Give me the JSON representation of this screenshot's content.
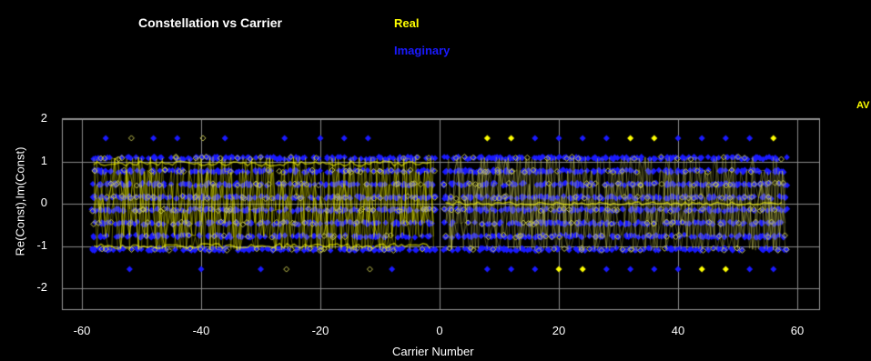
{
  "chart_data": {
    "type": "scatter",
    "title": "Constellation vs Carrier",
    "xlabel": "Carrier Number",
    "ylabel": "Re(Const),Im(Const)",
    "xlim": [
      -63,
      63
    ],
    "ylim": [
      -2.5,
      2.5
    ],
    "x_ticks": [
      -60,
      -40,
      -20,
      0,
      20,
      40,
      60
    ],
    "y_ticks": [
      2,
      1,
      0,
      -1,
      -2
    ],
    "x_tick_labels": [
      "-60",
      "-40",
      "-20",
      "0",
      "20",
      "40",
      "60"
    ],
    "y_tick_labels": [
      "2",
      "1",
      "0",
      "-1",
      "-2"
    ],
    "grid": true,
    "legend_position": "top-center",
    "series": [
      {
        "name": "Real",
        "color": "#ffff00",
        "marker": "diamond+line"
      },
      {
        "name": "Imaginary",
        "color": "#1a1aff",
        "marker": "diamond"
      }
    ],
    "carrier_ranges": [
      [
        -58,
        -1
      ],
      [
        1,
        58
      ]
    ],
    "qam_levels": [
      -1.08,
      -0.77,
      -0.46,
      -0.15,
      0.15,
      0.46,
      0.77,
      1.08
    ],
    "pilot_carriers_left": [
      -56,
      -52,
      -48,
      -44,
      -40,
      -36,
      -30,
      -26,
      -20,
      -16,
      -12,
      -8
    ],
    "pilot_carriers_right": [
      8,
      12,
      16,
      20,
      24,
      28,
      32,
      36,
      40,
      44,
      48,
      52,
      56
    ],
    "pilot_level": 1.55
  },
  "right_tag": "AV"
}
